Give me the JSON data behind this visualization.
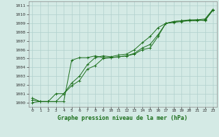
{
  "xlabel": "Graphe pression niveau de la mer (hPa)",
  "ylabel": "",
  "x_ticks": [
    0,
    1,
    2,
    3,
    4,
    5,
    6,
    7,
    8,
    9,
    10,
    11,
    12,
    13,
    14,
    15,
    16,
    17,
    18,
    19,
    20,
    21,
    22,
    23
  ],
  "ylim": [
    999.5,
    1011.5
  ],
  "xlim": [
    -0.5,
    23.5
  ],
  "yticks": [
    1000,
    1001,
    1002,
    1003,
    1004,
    1005,
    1006,
    1007,
    1008,
    1009,
    1010,
    1011
  ],
  "bg_color": "#d4eae5",
  "grid_color": "#b0d0cc",
  "line_color": "#1a6e1a",
  "series1": [
    1000.3,
    1000.1,
    1000.1,
    1000.1,
    1000.1,
    1004.8,
    1005.1,
    1005.1,
    1005.3,
    1005.1,
    1005.1,
    1005.2,
    1005.3,
    1005.5,
    1006.0,
    1006.2,
    1007.5,
    1009.0,
    1009.1,
    1009.2,
    1009.3,
    1009.3,
    1009.4,
    1010.5
  ],
  "series2": [
    1000.0,
    1000.1,
    1000.1,
    1001.0,
    1001.0,
    1002.2,
    1003.0,
    1004.3,
    1005.1,
    1005.3,
    1005.2,
    1005.4,
    1005.5,
    1006.0,
    1006.8,
    1007.5,
    1008.5,
    1009.0,
    1009.2,
    1009.3,
    1009.3,
    1009.4,
    1009.5,
    1010.6
  ],
  "series3": [
    1000.5,
    1000.1,
    1000.1,
    1000.1,
    1001.0,
    1001.9,
    1002.5,
    1003.8,
    1004.2,
    1005.0,
    1005.1,
    1005.2,
    1005.3,
    1005.6,
    1006.2,
    1006.6,
    1007.7,
    1009.0,
    1009.2,
    1009.3,
    1009.4,
    1009.4,
    1009.3,
    1010.5
  ]
}
